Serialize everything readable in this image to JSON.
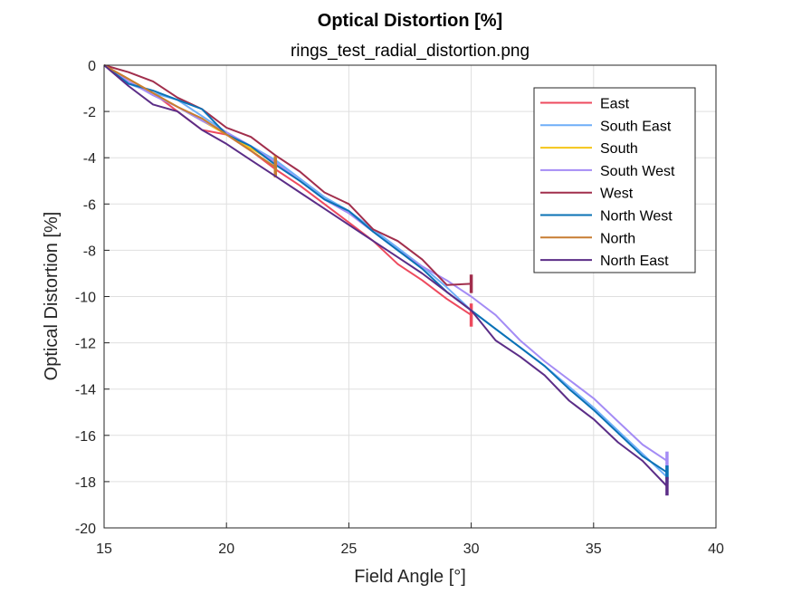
{
  "chart_data": {
    "type": "line",
    "title": "Optical Distortion [%]",
    "subtitle": "rings_test_radial_distortion.png",
    "xlabel": "Field Angle [°]",
    "ylabel": "Optical Distortion [%]",
    "xlim": [
      15,
      40
    ],
    "ylim": [
      -20,
      0
    ],
    "xticks": [
      15,
      20,
      25,
      30,
      35,
      40
    ],
    "yticks": [
      0,
      -2,
      -4,
      -6,
      -8,
      -10,
      -12,
      -14,
      -16,
      -18,
      -20
    ],
    "grid": true,
    "legend_position": "top-right",
    "series": [
      {
        "name": "East",
        "color": "#ee4a5e",
        "x": [
          15,
          16,
          17,
          18,
          19,
          20,
          21,
          22,
          23,
          24,
          25,
          26,
          27,
          28,
          29,
          30
        ],
        "y": [
          0,
          -0.6,
          -1.2,
          -2.0,
          -2.8,
          -3.0,
          -3.7,
          -4.5,
          -5.2,
          -6.0,
          -6.8,
          -7.6,
          -8.6,
          -9.3,
          -10.1,
          -10.8
        ],
        "err_end": {
          "x": 30,
          "y": -10.8,
          "half": 0.5
        }
      },
      {
        "name": "South East",
        "color": "#6eaef8",
        "x": [
          15,
          16,
          17,
          18,
          19,
          20,
          21,
          22,
          23,
          24,
          25,
          26,
          27,
          28,
          29,
          30,
          31,
          32,
          33,
          34,
          35,
          36,
          37,
          38
        ],
        "y": [
          0,
          -0.8,
          -1.2,
          -1.5,
          -2.2,
          -2.9,
          -3.5,
          -4.1,
          -4.9,
          -5.7,
          -6.3,
          -7.1,
          -7.9,
          -8.7,
          -9.6,
          -10.6,
          -11.4,
          -12.2,
          -13.0,
          -13.9,
          -14.8,
          -15.8,
          -16.8,
          -17.8
        ],
        "err_end": {
          "x": 38,
          "y": -17.8,
          "half": 0.3
        }
      },
      {
        "name": "South",
        "color": "#f5c518",
        "x": [
          15,
          16,
          17,
          18,
          19,
          20,
          21,
          22
        ],
        "y": [
          0,
          -0.6,
          -1.2,
          -1.8,
          -2.4,
          -3.0,
          -3.6,
          -4.2
        ],
        "err_end": {
          "x": 22,
          "y": -4.2,
          "half": 0.3
        }
      },
      {
        "name": "South West",
        "color": "#a48cf5",
        "x": [
          15,
          16,
          17,
          18,
          19,
          20,
          21,
          22,
          23,
          24,
          25,
          26,
          27,
          28,
          29,
          30,
          31,
          32,
          33,
          34,
          35,
          36,
          37,
          38
        ],
        "y": [
          0,
          -0.7,
          -1.3,
          -1.8,
          -2.4,
          -2.9,
          -3.5,
          -4.2,
          -5.0,
          -5.8,
          -6.4,
          -7.2,
          -8.0,
          -8.7,
          -9.3,
          -10.0,
          -10.8,
          -11.9,
          -12.8,
          -13.6,
          -14.4,
          -15.4,
          -16.4,
          -17.1
        ],
        "err_end": {
          "x": 38,
          "y": -17.1,
          "half": 0.4
        }
      },
      {
        "name": "West",
        "color": "#a12e4c",
        "x": [
          15,
          16,
          17,
          18,
          19,
          20,
          21,
          22,
          23,
          24,
          25,
          26,
          27,
          28,
          29,
          30
        ],
        "y": [
          0,
          -0.3,
          -0.7,
          -1.4,
          -1.9,
          -2.7,
          -3.1,
          -3.9,
          -4.6,
          -5.5,
          -6.0,
          -7.1,
          -7.6,
          -8.4,
          -9.5,
          -9.45
        ],
        "err_end": {
          "x": 30,
          "y": -9.45,
          "half": 0.4
        }
      },
      {
        "name": "North West",
        "color": "#0a72b5",
        "x": [
          15,
          16,
          17,
          18,
          19,
          20,
          21,
          22,
          23,
          24,
          25,
          26,
          27,
          28,
          29,
          30,
          31,
          32,
          33,
          34,
          35,
          36,
          37,
          38
        ],
        "y": [
          0,
          -0.8,
          -1.1,
          -1.5,
          -1.9,
          -3.0,
          -3.5,
          -4.3,
          -5.0,
          -5.8,
          -6.3,
          -7.2,
          -8.0,
          -8.8,
          -9.8,
          -10.6,
          -11.4,
          -12.2,
          -13.0,
          -14.0,
          -14.9,
          -15.9,
          -16.9,
          -17.6
        ],
        "err_end": {
          "x": 38,
          "y": -17.6,
          "half": 0.3
        }
      },
      {
        "name": "North",
        "color": "#c77d32",
        "x": [
          15,
          16,
          17,
          18,
          19,
          20,
          21,
          22
        ],
        "y": [
          0,
          -0.6,
          -1.2,
          -1.8,
          -2.3,
          -3.0,
          -3.7,
          -4.4
        ],
        "err_end": {
          "x": 22,
          "y": -4.4,
          "half": 0.45
        }
      },
      {
        "name": "North East",
        "color": "#5b2d87",
        "x": [
          15,
          16,
          17,
          18,
          19,
          20,
          21,
          22,
          23,
          24,
          25,
          26,
          27,
          28,
          29,
          30,
          31,
          32,
          33,
          34,
          35,
          36,
          37,
          38
        ],
        "y": [
          0,
          -0.9,
          -1.7,
          -2.0,
          -2.8,
          -3.4,
          -4.1,
          -4.8,
          -5.5,
          -6.2,
          -6.9,
          -7.6,
          -8.3,
          -9.0,
          -9.8,
          -10.6,
          -11.9,
          -12.6,
          -13.4,
          -14.5,
          -15.3,
          -16.3,
          -17.1,
          -18.2
        ],
        "err_end": {
          "x": 38,
          "y": -18.2,
          "half": 0.4
        }
      }
    ]
  }
}
